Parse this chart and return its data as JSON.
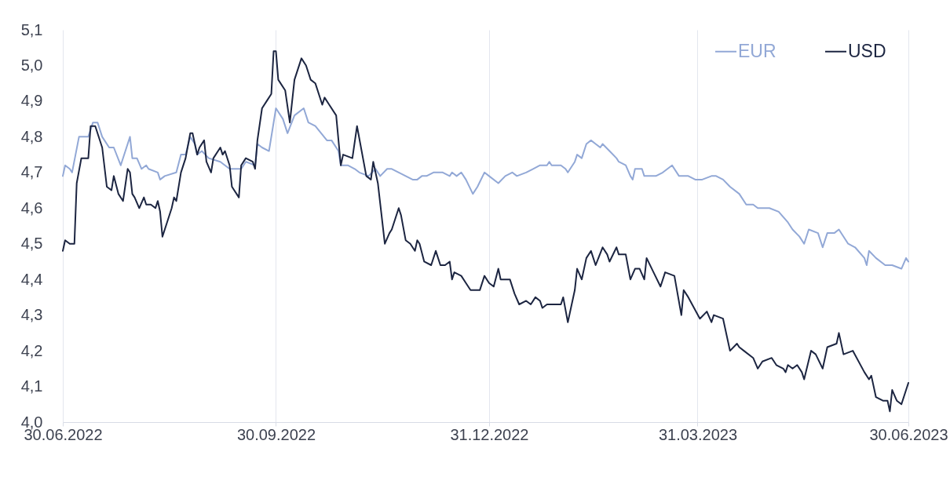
{
  "chart_data": {
    "type": "line",
    "xlim": [
      "2022-06-30",
      "2023-06-30"
    ],
    "xticks": [
      {
        "value": "2022-06-30",
        "label": "30.06.2022"
      },
      {
        "value": "2022-09-30",
        "label": "30.09.2022"
      },
      {
        "value": "2022-12-31",
        "label": "31.12.2022"
      },
      {
        "value": "2023-03-31",
        "label": "31.03.2023"
      },
      {
        "value": "2023-06-30",
        "label": "30.06.2023"
      }
    ],
    "ylim": [
      4.0,
      5.1
    ],
    "yticks": [
      {
        "value": 4.0,
        "label": "4,0"
      },
      {
        "value": 4.1,
        "label": "4,1"
      },
      {
        "value": 4.2,
        "label": "4,2"
      },
      {
        "value": 4.3,
        "label": "4,3"
      },
      {
        "value": 4.4,
        "label": "4,4"
      },
      {
        "value": 4.5,
        "label": "4,5"
      },
      {
        "value": 4.6,
        "label": "4,6"
      },
      {
        "value": 4.7,
        "label": "4,7"
      },
      {
        "value": 4.8,
        "label": "4,8"
      },
      {
        "value": 4.9,
        "label": "4,9"
      },
      {
        "value": 5.0,
        "label": "5,0"
      },
      {
        "value": 5.1,
        "label": "5,1"
      }
    ],
    "grid": "x",
    "legend": "top right",
    "series": [
      {
        "name": "EUR",
        "color": "#92a8d6",
        "x": [
          "2022-06-30",
          "2022-07-01",
          "2022-07-03",
          "2022-07-04",
          "2022-07-07",
          "2022-07-11",
          "2022-07-13",
          "2022-07-15",
          "2022-07-17",
          "2022-07-20",
          "2022-07-22",
          "2022-07-25",
          "2022-07-27",
          "2022-07-29",
          "2022-07-30",
          "2022-08-01",
          "2022-08-03",
          "2022-08-05",
          "2022-08-06",
          "2022-08-10",
          "2022-08-11",
          "2022-08-13",
          "2022-08-18",
          "2022-08-20",
          "2022-08-22",
          "2022-08-24",
          "2022-08-26",
          "2022-08-27",
          "2022-08-29",
          "2022-09-01",
          "2022-09-06",
          "2022-09-10",
          "2022-09-15",
          "2022-09-17",
          "2022-09-21",
          "2022-09-22",
          "2022-09-24",
          "2022-09-27",
          "2022-09-30",
          "2022-10-03",
          "2022-10-05",
          "2022-10-08",
          "2022-10-12",
          "2022-10-14",
          "2022-10-17",
          "2022-10-22",
          "2022-10-24",
          "2022-10-27",
          "2022-10-28",
          "2022-10-31",
          "2022-11-03",
          "2022-11-05",
          "2022-11-09",
          "2022-11-12",
          "2022-11-14",
          "2022-11-17",
          "2022-11-19",
          "2022-11-22",
          "2022-11-25",
          "2022-11-28",
          "2022-11-30",
          "2022-12-02",
          "2022-12-04",
          "2022-12-07",
          "2022-12-09",
          "2022-12-11",
          "2022-12-14",
          "2022-12-15",
          "2022-12-17",
          "2022-12-19",
          "2022-12-21",
          "2022-12-24",
          "2022-12-26",
          "2022-12-29",
          "2022-12-31",
          "2023-01-04",
          "2023-01-07",
          "2023-01-10",
          "2023-01-12",
          "2023-01-16",
          "2023-01-19",
          "2023-01-22",
          "2023-01-25",
          "2023-01-26",
          "2023-01-27",
          "2023-01-31",
          "2023-02-02",
          "2023-02-03",
          "2023-02-06",
          "2023-02-07",
          "2023-02-09",
          "2023-02-11",
          "2023-02-13",
          "2023-02-15",
          "2023-02-17",
          "2023-02-18",
          "2023-02-21",
          "2023-02-24",
          "2023-02-25",
          "2023-02-28",
          "2023-03-02",
          "2023-03-03",
          "2023-03-04",
          "2023-03-07",
          "2023-03-08",
          "2023-03-10",
          "2023-03-13",
          "2023-03-16",
          "2023-03-20",
          "2023-03-23",
          "2023-03-27",
          "2023-03-30",
          "2023-04-02",
          "2023-04-06",
          "2023-04-08",
          "2023-04-11",
          "2023-04-14",
          "2023-04-18",
          "2023-04-21",
          "2023-04-24",
          "2023-04-26",
          "2023-05-01",
          "2023-05-05",
          "2023-05-09",
          "2023-05-11",
          "2023-05-14",
          "2023-05-16",
          "2023-05-18",
          "2023-05-22",
          "2023-05-24",
          "2023-05-26",
          "2023-05-29",
          "2023-05-31",
          "2023-06-04",
          "2023-06-07",
          "2023-06-11",
          "2023-06-12",
          "2023-06-13",
          "2023-06-16",
          "2023-06-20",
          "2023-06-23",
          "2023-06-27",
          "2023-06-29",
          "2023-06-30"
        ],
        "values": [
          4.69,
          4.72,
          4.71,
          4.7,
          4.8,
          4.8,
          4.84,
          4.84,
          4.8,
          4.77,
          4.77,
          4.72,
          4.76,
          4.8,
          4.74,
          4.74,
          4.71,
          4.72,
          4.71,
          4.7,
          4.68,
          4.69,
          4.7,
          4.75,
          4.75,
          4.8,
          4.78,
          4.75,
          4.76,
          4.74,
          4.73,
          4.71,
          4.71,
          4.73,
          4.72,
          4.78,
          4.77,
          4.76,
          4.88,
          4.85,
          4.81,
          4.86,
          4.88,
          4.84,
          4.83,
          4.79,
          4.79,
          4.76,
          4.72,
          4.72,
          4.71,
          4.7,
          4.69,
          4.71,
          4.69,
          4.71,
          4.71,
          4.7,
          4.69,
          4.68,
          4.68,
          4.69,
          4.69,
          4.7,
          4.7,
          4.7,
          4.69,
          4.7,
          4.69,
          4.7,
          4.68,
          4.64,
          4.66,
          4.7,
          4.69,
          4.67,
          4.69,
          4.7,
          4.69,
          4.7,
          4.71,
          4.72,
          4.72,
          4.73,
          4.72,
          4.72,
          4.71,
          4.7,
          4.73,
          4.75,
          4.74,
          4.78,
          4.79,
          4.78,
          4.77,
          4.78,
          4.76,
          4.74,
          4.73,
          4.72,
          4.69,
          4.68,
          4.71,
          4.71,
          4.69,
          4.69,
          4.69,
          4.7,
          4.72,
          4.69,
          4.69,
          4.68,
          4.68,
          4.69,
          4.69,
          4.68,
          4.66,
          4.64,
          4.61,
          4.61,
          4.6,
          4.6,
          4.59,
          4.56,
          4.54,
          4.52,
          4.5,
          4.54,
          4.53,
          4.49,
          4.53,
          4.53,
          4.54,
          4.5,
          4.49,
          4.46,
          4.44,
          4.48,
          4.46,
          4.44,
          4.44,
          4.43,
          4.46,
          4.45
        ]
      },
      {
        "name": "USD",
        "color": "#1c2541",
        "x": [
          "2022-06-30",
          "2022-07-01",
          "2022-07-03",
          "2022-07-05",
          "2022-07-06",
          "2022-07-08",
          "2022-07-11",
          "2022-07-12",
          "2022-07-14",
          "2022-07-17",
          "2022-07-19",
          "2022-07-21",
          "2022-07-22",
          "2022-07-24",
          "2022-07-26",
          "2022-07-28",
          "2022-07-29",
          "2022-07-30",
          "2022-07-31",
          "2022-08-02",
          "2022-08-04",
          "2022-08-05",
          "2022-08-07",
          "2022-08-09",
          "2022-08-10",
          "2022-08-11",
          "2022-08-12",
          "2022-08-14",
          "2022-08-16",
          "2022-08-17",
          "2022-08-18",
          "2022-08-20",
          "2022-08-22",
          "2022-08-24",
          "2022-08-25",
          "2022-08-27",
          "2022-08-28",
          "2022-08-30",
          "2022-08-31",
          "2022-09-02",
          "2022-09-03",
          "2022-09-06",
          "2022-09-07",
          "2022-09-08",
          "2022-09-10",
          "2022-09-11",
          "2022-09-14",
          "2022-09-15",
          "2022-09-17",
          "2022-09-20",
          "2022-09-21",
          "2022-09-22",
          "2022-09-24",
          "2022-09-26",
          "2022-09-28",
          "2022-09-29",
          "2022-09-30",
          "2022-10-01",
          "2022-10-04",
          "2022-10-06",
          "2022-10-08",
          "2022-10-11",
          "2022-10-13",
          "2022-10-15",
          "2022-10-17",
          "2022-10-20",
          "2022-10-21",
          "2022-10-23",
          "2022-10-26",
          "2022-10-28",
          "2022-10-29",
          "2022-11-02",
          "2022-11-04",
          "2022-11-08",
          "2022-11-10",
          "2022-11-11",
          "2022-11-13",
          "2022-11-16",
          "2022-11-18",
          "2022-11-19",
          "2022-11-22",
          "2022-11-23",
          "2022-11-25",
          "2022-11-27",
          "2022-11-29",
          "2022-11-30",
          "2022-12-01",
          "2022-12-03",
          "2022-12-06",
          "2022-12-08",
          "2022-12-10",
          "2022-12-12",
          "2022-12-14",
          "2022-12-15",
          "2022-12-16",
          "2022-12-19",
          "2022-12-21",
          "2022-12-23",
          "2022-12-27",
          "2022-12-29",
          "2022-12-31",
          "2023-01-02",
          "2023-01-04",
          "2023-01-05",
          "2023-01-09",
          "2023-01-11",
          "2023-01-13",
          "2023-01-16",
          "2023-01-18",
          "2023-01-20",
          "2023-01-22",
          "2023-01-23",
          "2023-01-25",
          "2023-01-27",
          "2023-01-31",
          "2023-02-01",
          "2023-02-03",
          "2023-02-06",
          "2023-02-07",
          "2023-02-09",
          "2023-02-11",
          "2023-02-13",
          "2023-02-15",
          "2023-02-18",
          "2023-02-20",
          "2023-02-21",
          "2023-02-24",
          "2023-02-25",
          "2023-02-28",
          "2023-03-02",
          "2023-03-04",
          "2023-03-06",
          "2023-03-08",
          "2023-03-09",
          "2023-03-12",
          "2023-03-15",
          "2023-03-17",
          "2023-03-21",
          "2023-03-24",
          "2023-03-25",
          "2023-03-27",
          "2023-04-01",
          "2023-04-04",
          "2023-04-06",
          "2023-04-07",
          "2023-04-11",
          "2023-04-14",
          "2023-04-17",
          "2023-04-18",
          "2023-04-20",
          "2023-04-24",
          "2023-04-26",
          "2023-04-28",
          "2023-05-02",
          "2023-05-04",
          "2023-05-07",
          "2023-05-08",
          "2023-05-09",
          "2023-05-11",
          "2023-05-13",
          "2023-05-15",
          "2023-05-16",
          "2023-05-19",
          "2023-05-21",
          "2023-05-24",
          "2023-05-26",
          "2023-05-30",
          "2023-05-31",
          "2023-06-02",
          "2023-06-06",
          "2023-06-11",
          "2023-06-13",
          "2023-06-14",
          "2023-06-16",
          "2023-06-19",
          "2023-06-21",
          "2023-06-22",
          "2023-06-23",
          "2023-06-25",
          "2023-06-27",
          "2023-06-30"
        ],
        "values": [
          4.48,
          4.51,
          4.5,
          4.5,
          4.67,
          4.74,
          4.74,
          4.83,
          4.83,
          4.77,
          4.66,
          4.65,
          4.69,
          4.64,
          4.62,
          4.71,
          4.7,
          4.64,
          4.63,
          4.6,
          4.63,
          4.61,
          4.61,
          4.6,
          4.62,
          4.59,
          4.52,
          4.56,
          4.6,
          4.63,
          4.62,
          4.7,
          4.74,
          4.81,
          4.81,
          4.75,
          4.77,
          4.79,
          4.73,
          4.7,
          4.74,
          4.77,
          4.75,
          4.76,
          4.72,
          4.66,
          4.63,
          4.72,
          4.74,
          4.73,
          4.71,
          4.79,
          4.88,
          4.9,
          4.92,
          5.04,
          5.04,
          4.96,
          4.93,
          4.84,
          4.96,
          5.02,
          5.0,
          4.96,
          4.95,
          4.89,
          4.91,
          4.89,
          4.86,
          4.72,
          4.75,
          4.74,
          4.83,
          4.69,
          4.68,
          4.73,
          4.67,
          4.5,
          4.53,
          4.54,
          4.6,
          4.58,
          4.51,
          4.5,
          4.48,
          4.51,
          4.5,
          4.45,
          4.44,
          4.48,
          4.44,
          4.44,
          4.45,
          4.4,
          4.42,
          4.41,
          4.39,
          4.37,
          4.37,
          4.41,
          4.39,
          4.38,
          4.43,
          4.4,
          4.4,
          4.36,
          4.33,
          4.34,
          4.33,
          4.35,
          4.34,
          4.32,
          4.33,
          4.33,
          4.33,
          4.35,
          4.28,
          4.37,
          4.43,
          4.4,
          4.46,
          4.48,
          4.44,
          4.49,
          4.47,
          4.45,
          4.49,
          4.47,
          4.47,
          4.4,
          4.43,
          4.43,
          4.4,
          4.46,
          4.42,
          4.38,
          4.42,
          4.41,
          4.3,
          4.37,
          4.35,
          4.29,
          4.31,
          4.28,
          4.3,
          4.29,
          4.2,
          4.22,
          4.21,
          4.2,
          4.18,
          4.15,
          4.17,
          4.18,
          4.16,
          4.15,
          4.14,
          4.16,
          4.15,
          4.16,
          4.14,
          4.12,
          4.2,
          4.19,
          4.15,
          4.21,
          4.22,
          4.25,
          4.19,
          4.2,
          4.14,
          4.12,
          4.13,
          4.07,
          4.06,
          4.06,
          4.03,
          4.09,
          4.06,
          4.05,
          4.11
        ]
      }
    ]
  }
}
